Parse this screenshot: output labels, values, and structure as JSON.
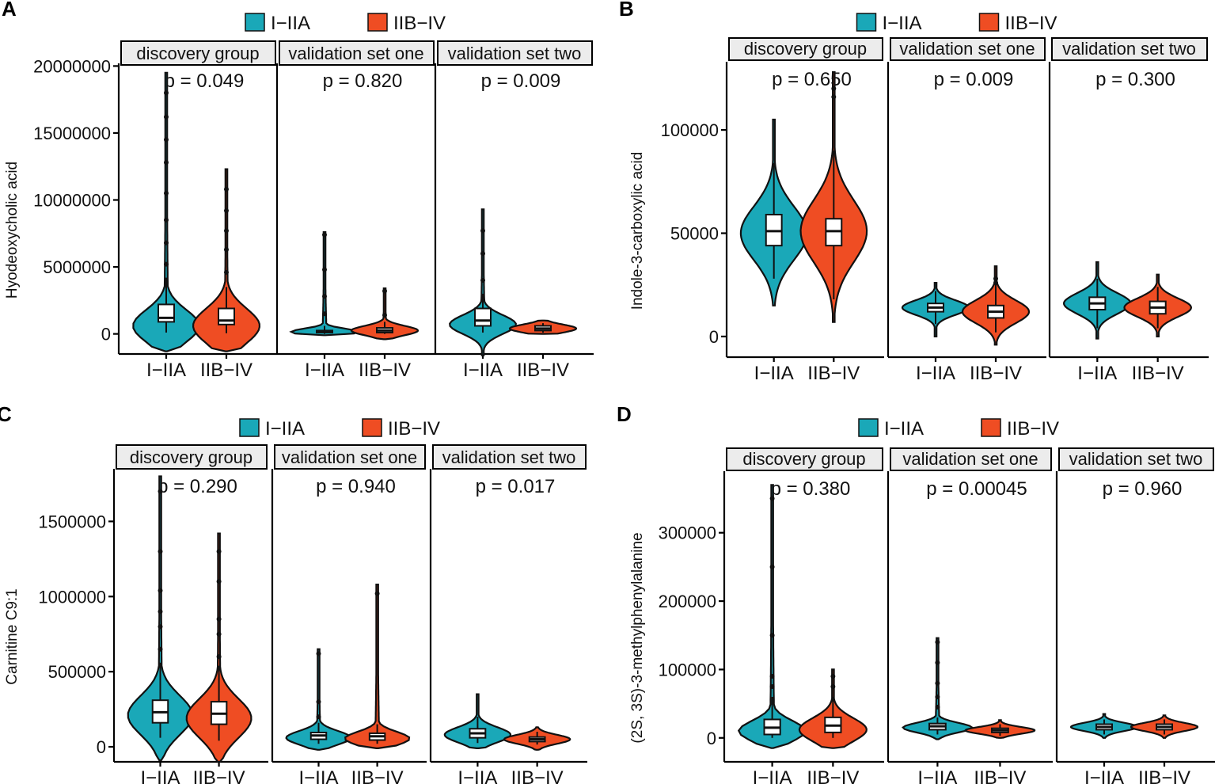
{
  "colors": {
    "early": "#1aa8b8",
    "late": "#ef4d23",
    "outline": "#111111",
    "box": "#ffffff"
  },
  "legend": {
    "items": [
      "I−IIA",
      "IIB−IV"
    ]
  },
  "strip_labels": [
    "discovery group",
    "validation set one",
    "validation set two"
  ],
  "x_tick_labels": [
    "I−IIA",
    "IIB−IV"
  ],
  "chart_data": [
    {
      "panel": "A",
      "type": "violin",
      "ylabel": "Hyodeoxycholic acid",
      "yticks": [
        0,
        5000000,
        10000000,
        15000000,
        20000000
      ],
      "ytick_labels": [
        "0",
        "5000000",
        "10000000",
        "15000000",
        "20000000"
      ],
      "ylim": [
        -1500000,
        20200000
      ],
      "facets": [
        {
          "name": "discovery group",
          "p_label": "p = 0.049",
          "groups": [
            {
              "name": "I−IIA",
              "min": -1300000,
              "max": 19500000,
              "mode": 600000,
              "spread": 1200000,
              "q1": 900000,
              "median": 1200000,
              "q3": 2200000,
              "wlo": 100000,
              "whi": 4200000,
              "outliers": [
                5200000,
                6800000,
                8500000,
                10500000,
                12800000,
                14500000,
                16200000,
                18000000
              ]
            },
            {
              "name": "IIB−IV",
              "min": -1300000,
              "max": 12300000,
              "mode": 600000,
              "spread": 1300000,
              "q1": 700000,
              "median": 1000000,
              "q3": 1900000,
              "wlo": 50000,
              "whi": 3500000,
              "outliers": [
                4600000,
                6300000,
                7700000,
                9200000,
                10800000
              ]
            }
          ]
        },
        {
          "name": "validation set one",
          "p_label": "p = 0.820",
          "groups": [
            {
              "name": "I−IIA",
              "min": -100000,
              "max": 7600000,
              "mode": 150000,
              "spread": 250000,
              "q1": 100000,
              "median": 160000,
              "q3": 250000,
              "wlo": 0,
              "whi": 600000,
              "outliers": [
                1500000,
                2800000,
                4800000,
                7400000
              ]
            },
            {
              "name": "IIB−IV",
              "min": -400000,
              "max": 3400000,
              "mode": 250000,
              "spread": 350000,
              "q1": 100000,
              "median": 250000,
              "q3": 450000,
              "wlo": 0,
              "whi": 900000,
              "outliers": [
                1400000,
                3200000
              ]
            }
          ]
        },
        {
          "name": "validation set two",
          "p_label": "p = 0.009",
          "groups": [
            {
              "name": "I−IIA",
              "min": -1600000,
              "max": 9300000,
              "mode": 700000,
              "spread": 700000,
              "q1": 600000,
              "median": 1000000,
              "q3": 1900000,
              "wlo": 100000,
              "whi": 3000000,
              "outliers": [
                4000000,
                6000000,
                7700000
              ]
            },
            {
              "name": "IIB−IV",
              "min": 0,
              "max": 1000000,
              "mode": 400000,
              "spread": 300000,
              "q1": 250000,
              "median": 400000,
              "q3": 600000,
              "wlo": 100000,
              "whi": 800000,
              "outliers": []
            }
          ]
        }
      ]
    },
    {
      "panel": "B",
      "type": "violin",
      "ylabel": "Indole-3-carboxylic acid",
      "yticks": [
        0,
        50000,
        100000
      ],
      "ytick_labels": [
        "0",
        "50000",
        "100000"
      ],
      "ylim": [
        -10000,
        133000
      ],
      "facets": [
        {
          "name": "discovery group",
          "p_label": "p = 0.650",
          "groups": [
            {
              "name": "I−IIA",
              "min": 15000,
              "max": 105000,
              "mode": 50000,
              "spread": 13000,
              "q1": 44000,
              "median": 51000,
              "q3": 59000,
              "wlo": 28000,
              "whi": 84000,
              "outliers": []
            },
            {
              "name": "IIB−IV",
              "min": 7000,
              "max": 128000,
              "mode": 51000,
              "spread": 15000,
              "q1": 44000,
              "median": 51000,
              "q3": 57000,
              "wlo": 18000,
              "whi": 90000,
              "outliers": [
                116000,
                120000
              ]
            }
          ]
        },
        {
          "name": "validation set one",
          "p_label": "p = 0.009",
          "groups": [
            {
              "name": "I−IIA",
              "min": 0,
              "max": 26000,
              "mode": 14000,
              "spread": 3500,
              "q1": 12000,
              "median": 14000,
              "q3": 16000,
              "wlo": 6000,
              "whi": 22000,
              "outliers": []
            },
            {
              "name": "IIB−IV",
              "min": -4000,
              "max": 34000,
              "mode": 12000,
              "spread": 5500,
              "q1": 9000,
              "median": 12000,
              "q3": 15000,
              "wlo": 2000,
              "whi": 25000,
              "outliers": [
                26000,
                28000
              ]
            }
          ]
        },
        {
          "name": "validation set two",
          "p_label": "p = 0.300",
          "groups": [
            {
              "name": "I−IIA",
              "min": -1000,
              "max": 36000,
              "mode": 16000,
              "spread": 5000,
              "q1": 13000,
              "median": 16000,
              "q3": 19000,
              "wlo": 4000,
              "whi": 28000,
              "outliers": []
            },
            {
              "name": "IIB−IV",
              "min": 0,
              "max": 30000,
              "mode": 14000,
              "spread": 4500,
              "q1": 11000,
              "median": 14000,
              "q3": 17000,
              "wlo": 4000,
              "whi": 24000,
              "outliers": []
            }
          ]
        }
      ]
    },
    {
      "panel": "C",
      "type": "violin",
      "ylabel": "Carnitine C9:1",
      "yticks": [
        0,
        500000,
        1000000,
        1500000
      ],
      "ytick_labels": [
        "0",
        "500000",
        "1000000",
        "1500000"
      ],
      "ylim": [
        -100000,
        1850000
      ],
      "facets": [
        {
          "name": "discovery group",
          "p_label": "p = 0.290",
          "groups": [
            {
              "name": "I−IIA",
              "min": -90000,
              "max": 1800000,
              "mode": 210000,
              "spread": 130000,
              "q1": 160000,
              "median": 230000,
              "q3": 310000,
              "wlo": 60000,
              "whi": 560000,
              "outliers": [
                650000,
                800000,
                900000,
                1040000,
                1300000,
                1700000
              ]
            },
            {
              "name": "IIB−IV",
              "min": -100000,
              "max": 1420000,
              "mode": 190000,
              "spread": 130000,
              "q1": 150000,
              "median": 220000,
              "q3": 300000,
              "wlo": 40000,
              "whi": 540000,
              "outliers": [
                600000,
                750000,
                850000,
                1100000,
                1300000
              ]
            }
          ]
        },
        {
          "name": "validation set one",
          "p_label": "p = 0.940",
          "groups": [
            {
              "name": "I−IIA",
              "min": -20000,
              "max": 650000,
              "mode": 60000,
              "spread": 45000,
              "q1": 50000,
              "median": 75000,
              "q3": 95000,
              "wlo": 20000,
              "whi": 160000,
              "outliers": [
                200000,
                300000,
                620000
              ]
            },
            {
              "name": "IIB−IV",
              "min": -10000,
              "max": 1080000,
              "mode": 55000,
              "spread": 45000,
              "q1": 45000,
              "median": 70000,
              "q3": 90000,
              "wlo": 20000,
              "whi": 150000,
              "outliers": [
                1020000
              ]
            }
          ]
        },
        {
          "name": "validation set two",
          "p_label": "p = 0.017",
          "groups": [
            {
              "name": "I−IIA",
              "min": -10000,
              "max": 350000,
              "mode": 80000,
              "spread": 50000,
              "q1": 60000,
              "median": 90000,
              "q3": 120000,
              "wlo": 25000,
              "whi": 200000,
              "outliers": []
            },
            {
              "name": "IIB−IV",
              "min": -20000,
              "max": 130000,
              "mode": 50000,
              "spread": 30000,
              "q1": 35000,
              "median": 50000,
              "q3": 65000,
              "wlo": 15000,
              "whi": 100000,
              "outliers": []
            }
          ]
        }
      ]
    },
    {
      "panel": "D",
      "type": "violin",
      "ylabel": "(2S, 3S)-3-methylphenylalanine",
      "yticks": [
        0,
        100000,
        200000,
        300000
      ],
      "ytick_labels": [
        "0",
        "100000",
        "200000",
        "300000"
      ],
      "ylim": [
        -35000,
        390000
      ],
      "facets": [
        {
          "name": "discovery group",
          "p_label": "p = 0.380",
          "groups": [
            {
              "name": "I−IIA",
              "min": -15000,
              "max": 370000,
              "mode": 10000,
              "spread": 15000,
              "q1": 5000,
              "median": 15000,
              "q3": 27000,
              "wlo": 0,
              "whi": 60000,
              "outliers": [
                75000,
                90000,
                150000,
                250000,
                350000
              ]
            },
            {
              "name": "IIB−IV",
              "min": -15000,
              "max": 100000,
              "mode": 12000,
              "spread": 17000,
              "q1": 8000,
              "median": 18000,
              "q3": 30000,
              "wlo": 0,
              "whi": 60000,
              "outliers": [
                75000,
                90000
              ]
            }
          ]
        },
        {
          "name": "validation set one",
          "p_label": "p = 0.00045",
          "groups": [
            {
              "name": "I−IIA",
              "min": -2000,
              "max": 146000,
              "mode": 15000,
              "spread": 7000,
              "q1": 12000,
              "median": 17000,
              "q3": 21000,
              "wlo": 5000,
              "whi": 30000,
              "outliers": [
                45000,
                60000,
                80000,
                110000,
                140000
              ]
            },
            {
              "name": "IIB−IV",
              "min": 0,
              "max": 26000,
              "mode": 11000,
              "spread": 5000,
              "q1": 8000,
              "median": 11000,
              "q3": 14000,
              "wlo": 3000,
              "whi": 20000,
              "outliers": []
            }
          ]
        },
        {
          "name": "validation set two",
          "p_label": "p = 0.960",
          "groups": [
            {
              "name": "I−IIA",
              "min": 0,
              "max": 35000,
              "mode": 16000,
              "spread": 6000,
              "q1": 12000,
              "median": 16000,
              "q3": 20000,
              "wlo": 5000,
              "whi": 27000,
              "outliers": []
            },
            {
              "name": "IIB−IV",
              "min": 0,
              "max": 33000,
              "mode": 16000,
              "spread": 6000,
              "q1": 12000,
              "median": 16000,
              "q3": 20000,
              "wlo": 5000,
              "whi": 27000,
              "outliers": []
            }
          ]
        }
      ]
    }
  ]
}
